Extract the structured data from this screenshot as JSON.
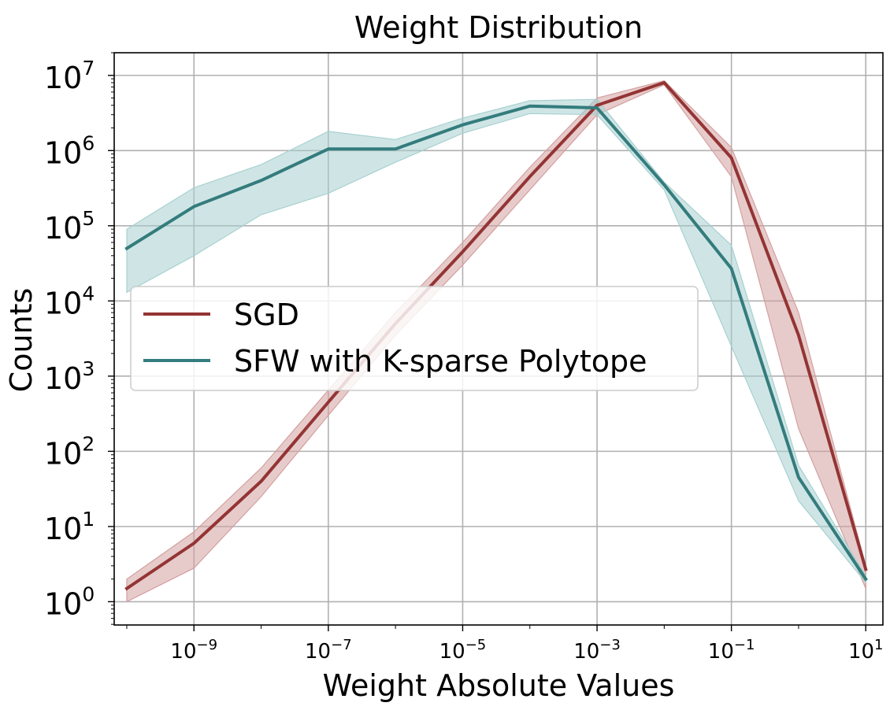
{
  "chart_data": {
    "type": "line",
    "title": "Weight Distribution",
    "xlabel": "Weight Absolute Values",
    "ylabel": "Counts",
    "xscale": "log",
    "yscale": "log",
    "xlim": [
      6.5e-11,
      18
    ],
    "ylim": [
      0.49,
      20000000
    ],
    "grid": true,
    "legend_position": "center-left",
    "xticks": [
      {
        "base": "10",
        "exp": "−9",
        "value": 1e-09
      },
      {
        "base": "10",
        "exp": "−7",
        "value": 1e-07
      },
      {
        "base": "10",
        "exp": "−5",
        "value": 1e-05
      },
      {
        "base": "10",
        "exp": "−3",
        "value": 0.001
      },
      {
        "base": "10",
        "exp": "−1",
        "value": 0.1
      },
      {
        "base": "10",
        "exp": "1",
        "value": 10
      }
    ],
    "yticks": [
      {
        "base": "10",
        "exp": "0",
        "value": 1
      },
      {
        "base": "10",
        "exp": "1",
        "value": 10
      },
      {
        "base": "10",
        "exp": "2",
        "value": 100
      },
      {
        "base": "10",
        "exp": "3",
        "value": 1000
      },
      {
        "base": "10",
        "exp": "4",
        "value": 10000
      },
      {
        "base": "10",
        "exp": "5",
        "value": 100000
      },
      {
        "base": "10",
        "exp": "6",
        "value": 1000000
      },
      {
        "base": "10",
        "exp": "7",
        "value": 10000000
      }
    ],
    "x": [
      1e-10,
      1e-09,
      1e-08,
      1e-07,
      1e-06,
      1e-05,
      0.0001,
      0.001,
      0.01,
      0.1,
      1,
      10
    ],
    "series": [
      {
        "name": "SGD",
        "color": "#943434",
        "band_color": "#d4a0a0",
        "values": [
          1.5,
          6,
          40,
          450,
          5000,
          45000,
          450000,
          4000000,
          8000000,
          800000,
          3500,
          2.7
        ],
        "lower": [
          1.0,
          2.8,
          25,
          300,
          3500,
          30000,
          300000,
          3000000,
          7500000,
          450000,
          200,
          1.5
        ],
        "upper": [
          2.0,
          8.5,
          60,
          650,
          7000,
          60000,
          600000,
          5000000,
          8500000,
          1100000,
          7000,
          3.0
        ]
      },
      {
        "name": "SFW with K-sparse Polytope",
        "color": "#347c7d",
        "band_color": "#a8d0d0",
        "values": [
          50000,
          180000,
          400000,
          1050000,
          1050000,
          2200000,
          3900000,
          3700000,
          350000,
          27000,
          45,
          2.0
        ],
        "lower": [
          13000,
          40000,
          140000,
          270000,
          700000,
          1700000,
          3100000,
          3000000,
          300000,
          2500,
          22,
          1.8
        ],
        "upper": [
          90000,
          320000,
          650000,
          1800000,
          1400000,
          2700000,
          4600000,
          4800000,
          380000,
          55000,
          65,
          2.2
        ]
      }
    ]
  }
}
